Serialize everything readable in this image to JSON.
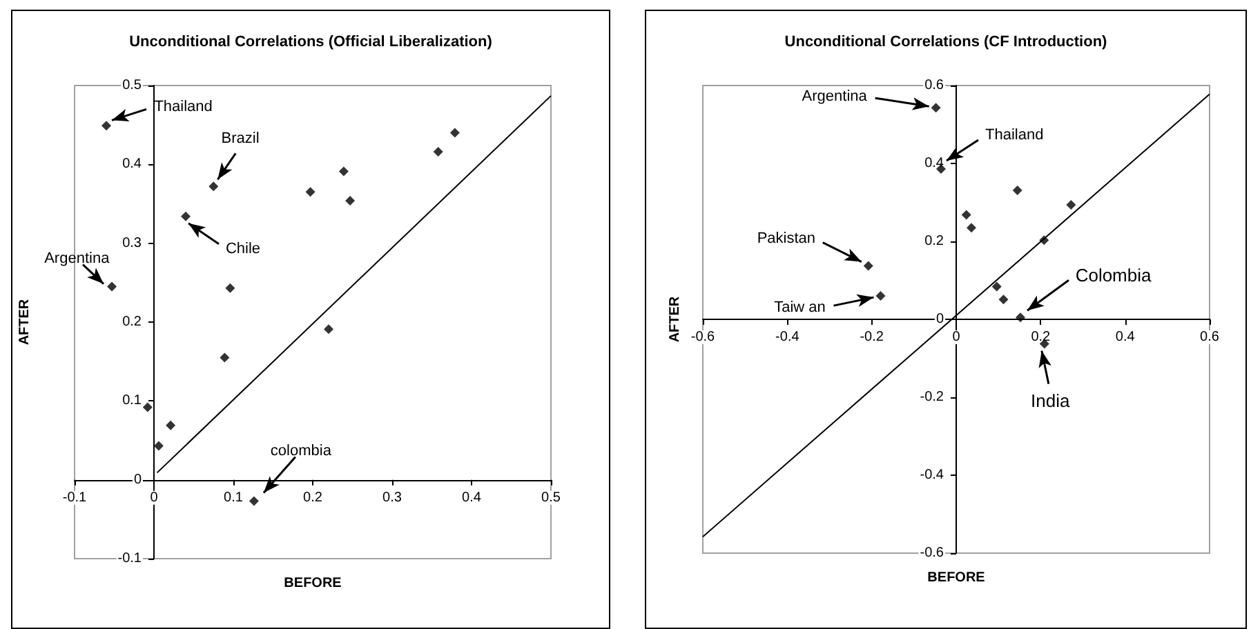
{
  "chart_data": [
    {
      "type": "scatter",
      "title": "Unconditional Correlations (Official Liberalization)",
      "xlabel": "BEFORE",
      "ylabel": "AFTER",
      "xlim": [
        -0.1,
        0.5
      ],
      "ylim": [
        -0.1,
        0.5
      ],
      "xticks": [
        -0.1,
        0,
        0.1,
        0.2,
        0.3,
        0.4,
        0.5
      ],
      "yticks": [
        -0.1,
        0,
        0.1,
        0.2,
        0.3,
        0.4,
        0.5
      ],
      "series": [
        {
          "color": "#000000",
          "marker": "diamond",
          "x": [
            -0.06,
            -0.053,
            0.075,
            0.04,
            0.096,
            0.089,
            -0.008,
            0.006,
            0.021,
            0.126,
            0.197,
            0.22,
            0.239,
            0.247,
            0.358,
            0.379
          ],
          "values": [
            0.449,
            0.245,
            0.372,
            0.334,
            0.243,
            0.155,
            0.092,
            0.043,
            0.069,
            -0.027,
            0.365,
            0.191,
            0.391,
            0.354,
            0.416,
            0.44
          ]
        },
        {
          "type": "line",
          "color": "#000000",
          "marker": "none",
          "x": [
            0.004,
            0.5
          ],
          "values": [
            0.009,
            0.487
          ]
        }
      ],
      "annotations": [
        {
          "text": "Thailand",
          "x": -0.06,
          "y": 0.449
        },
        {
          "text": "Argentina",
          "x": -0.053,
          "y": 0.245
        },
        {
          "text": "Brazil",
          "x": 0.075,
          "y": 0.372
        },
        {
          "text": "Chile",
          "x": 0.04,
          "y": 0.334
        },
        {
          "text": "colombia",
          "x": 0.126,
          "y": -0.027
        }
      ]
    },
    {
      "type": "scatter",
      "title": "Unconditional Correlations (CF Introduction)",
      "xlabel": "BEFORE",
      "ylabel": "AFTER",
      "xlim": [
        -0.6,
        0.6
      ],
      "ylim": [
        -0.6,
        0.6
      ],
      "xticks": [
        -0.6,
        -0.4,
        -0.2,
        0,
        0.2,
        0.4,
        0.6
      ],
      "yticks": [
        -0.6,
        -0.4,
        -0.2,
        0,
        0.2,
        0.4,
        0.6
      ],
      "series": [
        {
          "color": "#000000",
          "marker": "diamond",
          "x": [
            -0.048,
            -0.036,
            0.145,
            0.024,
            0.036,
            0.272,
            0.208,
            -0.208,
            -0.179,
            0.096,
            0.112,
            0.152,
            0.209
          ],
          "values": [
            0.543,
            0.386,
            0.331,
            0.268,
            0.235,
            0.294,
            0.203,
            0.137,
            0.06,
            0.084,
            0.051,
            0.005,
            -0.063
          ]
        },
        {
          "type": "line",
          "color": "#000000",
          "marker": "none",
          "x": [
            -0.6,
            0.6
          ],
          "values": [
            -0.558,
            0.578
          ]
        }
      ],
      "annotations": [
        {
          "text": "Argentina",
          "x": -0.048,
          "y": 0.543
        },
        {
          "text": "Thailand",
          "x": -0.036,
          "y": 0.386
        },
        {
          "text": "Pakistan",
          "x": -0.208,
          "y": 0.137
        },
        {
          "text": "Taiw an",
          "x": -0.179,
          "y": 0.06
        },
        {
          "text": "Colombia",
          "x": 0.152,
          "y": 0.005
        },
        {
          "text": "India",
          "x": 0.209,
          "y": -0.063
        }
      ]
    }
  ]
}
